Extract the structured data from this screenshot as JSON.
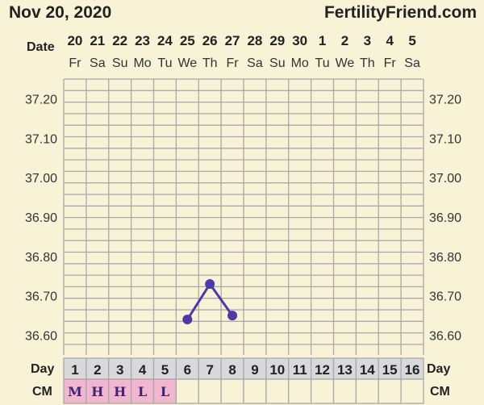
{
  "header": {
    "date": "Nov 20, 2020",
    "site": "FertilityFriend.com"
  },
  "labels": {
    "date_row": "Date",
    "day_row": "Day",
    "cm_row": "CM"
  },
  "colors": {
    "background": "#f8f3d6",
    "grid": "#a9a9a9",
    "line": "#4b3aa8",
    "day_cell": "#d9d9dc",
    "cm_highlight": "#f2b6cf"
  },
  "chart_data": {
    "type": "line",
    "title": "",
    "dates": [
      "20",
      "21",
      "22",
      "23",
      "24",
      "25",
      "26",
      "27",
      "28",
      "29",
      "30",
      "1",
      "2",
      "3",
      "4",
      "5"
    ],
    "weekdays": [
      "Fr",
      "Sa",
      "Su",
      "Mo",
      "Tu",
      "We",
      "Th",
      "Fr",
      "Sa",
      "Su",
      "Mo",
      "Tu",
      "We",
      "Th",
      "Fr",
      "Sa"
    ],
    "days": [
      "1",
      "2",
      "3",
      "4",
      "5",
      "6",
      "7",
      "8",
      "9",
      "10",
      "11",
      "12",
      "13",
      "14",
      "15",
      "16"
    ],
    "cervical_mucus": [
      "M",
      "H",
      "H",
      "L",
      "L",
      "",
      "",
      "",
      "",
      "",
      "",
      "",
      "",
      "",
      "",
      ""
    ],
    "y_ticks": [
      "37.20",
      "37.10",
      "37.00",
      "36.90",
      "36.80",
      "36.70",
      "36.60"
    ],
    "ylim": [
      36.55,
      37.25
    ],
    "grid": true,
    "series": [
      {
        "x": [
          6,
          7,
          8
        ],
        "y": [
          36.64,
          36.73,
          36.65
        ]
      }
    ]
  }
}
